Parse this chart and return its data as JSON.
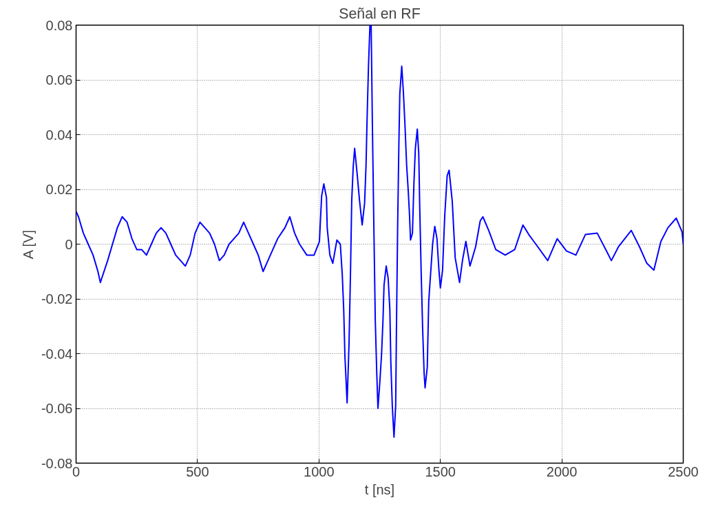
{
  "chart_data": {
    "type": "line",
    "title": "Señal en RF",
    "xlabel": "t [ns]",
    "ylabel": "A [V]",
    "xlim": [
      0,
      2500
    ],
    "ylim": [
      -0.08,
      0.08
    ],
    "xticks": [
      0,
      500,
      1000,
      1500,
      2000,
      2500
    ],
    "yticks": [
      {
        "value": -0.08,
        "label": "-0.08"
      },
      {
        "value": -0.06,
        "label": "-0.06"
      },
      {
        "value": -0.04,
        "label": "-0.04"
      },
      {
        "value": -0.02,
        "label": "-0.02"
      },
      0,
      {
        "value": 0.02,
        "label": "0.02"
      },
      {
        "value": 0.04,
        "label": "0.04"
      },
      {
        "value": 0.06,
        "label": "0.06"
      },
      {
        "value": 0.08,
        "label": "0.08"
      }
    ],
    "grid": true,
    "marker": "none",
    "line_style": "solid",
    "series": [
      {
        "color": "#0000ff",
        "x": [
          0,
          10,
          30,
          50,
          70,
          90,
          100,
          115,
          130,
          150,
          170,
          190,
          210,
          230,
          250,
          270,
          290,
          310,
          330,
          350,
          370,
          390,
          410,
          430,
          450,
          470,
          490,
          510,
          530,
          550,
          570,
          590,
          610,
          630,
          650,
          670,
          690,
          710,
          730,
          750,
          770,
          790,
          810,
          830,
          860,
          880,
          900,
          920,
          950,
          980,
          1002,
          1011,
          1020,
          1031,
          1034,
          1045,
          1057,
          1074,
          1088,
          1096,
          1102,
          1107,
          1116,
          1124,
          1130,
          1135,
          1141,
          1147,
          1158,
          1167,
          1178,
          1188,
          1194,
          1198,
          1204,
          1210,
          1215,
          1220,
          1226,
          1232,
          1238,
          1243,
          1251,
          1258,
          1264,
          1268,
          1277,
          1285,
          1292,
          1296,
          1302,
          1309,
          1316,
          1319,
          1324,
          1329,
          1333,
          1341,
          1348,
          1354,
          1361,
          1368,
          1373,
          1377,
          1385,
          1391,
          1397,
          1405,
          1411,
          1415,
          1421,
          1427,
          1433,
          1437,
          1446,
          1452,
          1460,
          1468,
          1477,
          1486,
          1494,
          1500,
          1509,
          1518,
          1528,
          1536,
          1549,
          1561,
          1579,
          1591,
          1605,
          1622,
          1645,
          1664,
          1675,
          1699,
          1728,
          1767,
          1806,
          1840,
          1864,
          1893,
          1942,
          1981,
          2019,
          2058,
          2097,
          2146,
          2184,
          2204,
          2233,
          2286,
          2320,
          2350,
          2379,
          2408,
          2437,
          2471,
          2495,
          2500
        ],
        "values": [
          0.012,
          0.01,
          0.004,
          0.0,
          -0.004,
          -0.01,
          -0.014,
          -0.01,
          -0.006,
          0.0,
          0.006,
          0.01,
          0.008,
          0.002,
          -0.002,
          -0.002,
          -0.004,
          0.0,
          0.004,
          0.006,
          0.004,
          0.0,
          -0.004,
          -0.006,
          -0.008,
          -0.004,
          0.004,
          0.008,
          0.006,
          0.004,
          0.0,
          -0.006,
          -0.004,
          0.0,
          0.002,
          0.004,
          0.008,
          0.004,
          0.0,
          -0.004,
          -0.01,
          -0.006,
          -0.002,
          0.002,
          0.006,
          0.01,
          0.004,
          0.0,
          -0.004,
          -0.004,
          0.001,
          0.0175,
          0.022,
          0.017,
          0.006,
          -0.004,
          -0.007,
          0.0015,
          0.0,
          -0.011,
          -0.024,
          -0.041,
          -0.058,
          -0.036,
          -0.01,
          0.016,
          0.028,
          0.035,
          0.025,
          0.016,
          0.007,
          0.015,
          0.029,
          0.045,
          0.065,
          0.08,
          0.08,
          0.044,
          0.007,
          -0.028,
          -0.047,
          -0.06,
          -0.05,
          -0.04,
          -0.027,
          -0.015,
          -0.008,
          -0.0125,
          -0.024,
          -0.043,
          -0.059,
          -0.0705,
          -0.059,
          -0.032,
          0.006,
          0.036,
          0.055,
          0.065,
          0.055,
          0.044,
          0.029,
          0.019,
          0.0105,
          0.0015,
          0.004,
          0.022,
          0.035,
          0.042,
          0.033,
          0.0135,
          -0.0105,
          -0.031,
          -0.047,
          -0.0525,
          -0.045,
          -0.021,
          -0.0105,
          0.0,
          0.0065,
          0.002,
          -0.0095,
          -0.016,
          -0.0095,
          0.0105,
          0.025,
          0.027,
          0.0155,
          -0.005,
          -0.014,
          -0.006,
          0.001,
          -0.008,
          -0.001,
          0.0085,
          0.01,
          0.005,
          -0.002,
          -0.004,
          -0.002,
          0.007,
          0.0035,
          0.0,
          -0.006,
          0.002,
          -0.0025,
          -0.004,
          0.0035,
          0.004,
          -0.0025,
          -0.006,
          -0.001,
          0.005,
          -0.001,
          -0.007,
          -0.0095,
          0.001,
          0.006,
          0.0095,
          0.0045,
          0.0
        ]
      }
    ]
  }
}
